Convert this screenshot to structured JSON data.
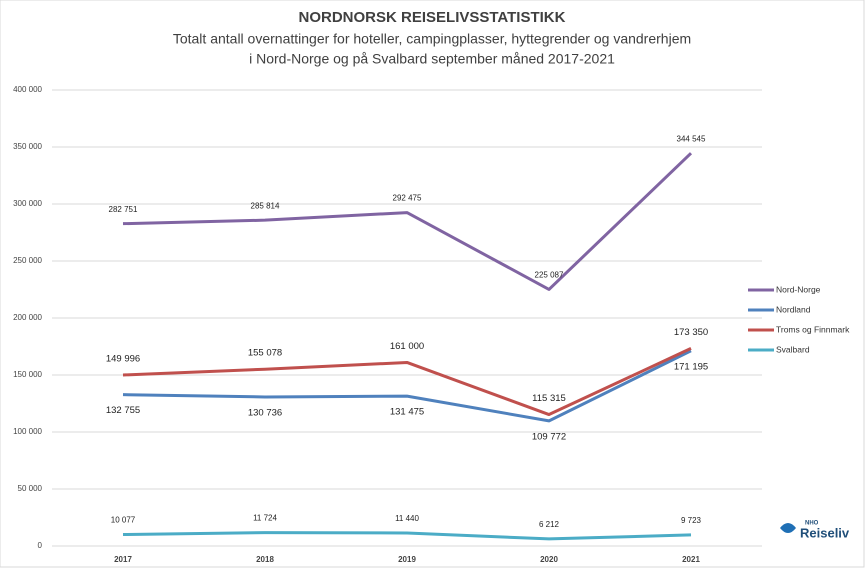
{
  "chart_data": {
    "type": "line",
    "title": "NORDNORSK REISELIVSSTATISTIKK",
    "subtitle": [
      "Totalt antall overnattinger for hoteller, campingplasser, hyttegrender og vandrerhjem",
      "i Nord-Norge og på Svalbard september måned 2017-2021"
    ],
    "categories": [
      "2017",
      "2018",
      "2019",
      "2020",
      "2021"
    ],
    "series": [
      {
        "name": "Nord-Norge",
        "color": "#8064a2",
        "values": [
          282751,
          285814,
          292475,
          225087,
          344545
        ],
        "value_labels": [
          "282 751",
          "285 814",
          "292 475",
          "225 087",
          "344 545"
        ]
      },
      {
        "name": "Nordland",
        "color": "#4f81bd",
        "values": [
          132755,
          130736,
          131475,
          109772,
          171195
        ],
        "value_labels": [
          "132 755",
          "130 736",
          "131 475",
          "109 772",
          "171 195"
        ]
      },
      {
        "name": "Troms og Finnmark",
        "color": "#c0504d",
        "values": [
          149996,
          155078,
          161000,
          115315,
          173350
        ],
        "value_labels": [
          "149 996",
          "155 078",
          "161 000",
          "115 315",
          "173 350"
        ]
      },
      {
        "name": "Svalbard",
        "color": "#4bacc6",
        "values": [
          10077,
          11724,
          11440,
          6212,
          9723
        ],
        "value_labels": [
          "10 077",
          "11 724",
          "11 440",
          "6 212",
          "9 723"
        ]
      }
    ],
    "ylim": [
      0,
      400000
    ],
    "yticks": [
      0,
      {
        "value": 50000,
        "label": "50 000"
      },
      {
        "value": 100000,
        "label": "100 000"
      },
      {
        "value": 150000,
        "label": "150 000"
      },
      {
        "value": 200000,
        "label": "200 000"
      },
      {
        "value": 250000,
        "label": "250 000"
      },
      {
        "value": 300000,
        "label": "300 000"
      },
      {
        "value": 350000,
        "label": "350 000"
      },
      {
        "value": 400000,
        "label": "400 000"
      }
    ],
    "grid": true,
    "legend": "right"
  },
  "logo": {
    "small": "NHO",
    "text": "Reiseliv"
  }
}
